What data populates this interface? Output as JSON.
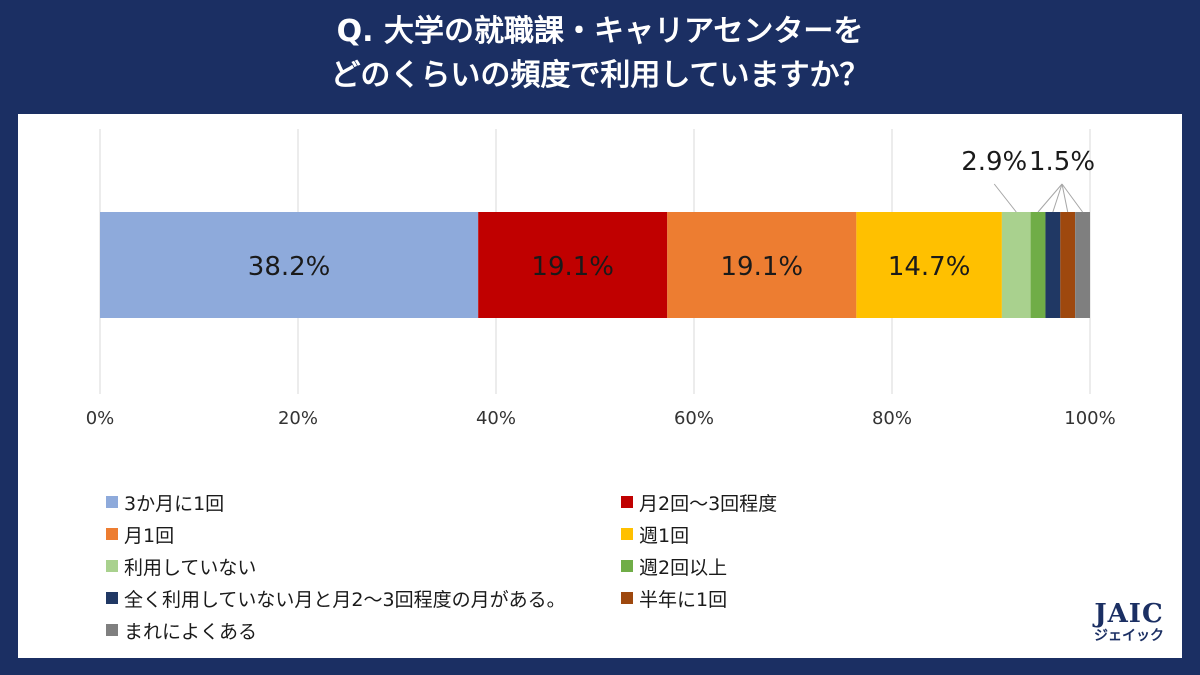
{
  "header": {
    "title_line1": "Q. 大学の就職課・キャリアセンターを",
    "title_line2": "どのくらいの頻度で利用していますか？"
  },
  "logo": {
    "main": "JAIC",
    "sub": "ジェイック"
  },
  "chart_data": {
    "type": "bar",
    "orientation": "horizontal-stacked-100",
    "xlim": [
      0,
      100
    ],
    "ticks": [
      "0%",
      "20%",
      "40%",
      "60%",
      "80%",
      "100%"
    ],
    "tick_values": [
      0,
      20,
      40,
      60,
      80,
      100
    ],
    "grid": true,
    "legend_position": "bottom",
    "series": [
      {
        "name": "3か月に1回",
        "value": 38.2,
        "label": "38.2%",
        "color": "#8eaadb"
      },
      {
        "name": "月2回〜3回程度",
        "value": 19.1,
        "label": "19.1%",
        "color": "#c00000"
      },
      {
        "name": "月1回",
        "value": 19.1,
        "label": "19.1%",
        "color": "#ed7d31"
      },
      {
        "name": "週1回",
        "value": 14.7,
        "label": "14.7%",
        "color": "#ffc000"
      },
      {
        "name": "利用していない",
        "value": 2.9,
        "label": "2.9%",
        "color": "#a9d18e"
      },
      {
        "name": "週2回以上",
        "value": 1.5,
        "label": "1.5%",
        "color": "#70ad47"
      },
      {
        "name": "全く利用していない月と月2〜3回程度の月がある。",
        "value": 1.5,
        "label": "",
        "color": "#203864"
      },
      {
        "name": "半年に1回",
        "value": 1.5,
        "label": "",
        "color": "#9e480e"
      },
      {
        "name": "まれによくある",
        "value": 1.5,
        "label": "",
        "color": "#7f7f7f"
      }
    ]
  }
}
